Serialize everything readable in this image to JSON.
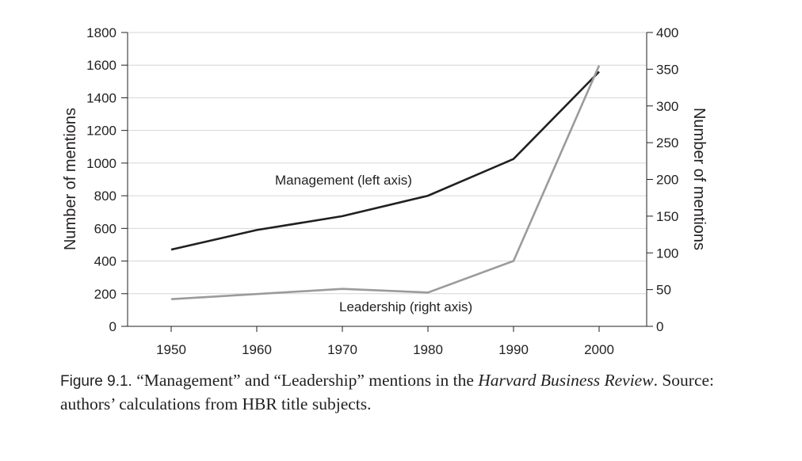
{
  "chart_data": {
    "type": "line",
    "x": [
      1950,
      1960,
      1970,
      1980,
      1990,
      2000
    ],
    "x_tick_labels": [
      "1950",
      "1960",
      "1970",
      "1980",
      "1990",
      "2000"
    ],
    "left_axis": {
      "label": "Number of mentions",
      "ylim": [
        0,
        1800
      ],
      "ticks": [
        0,
        200,
        400,
        600,
        800,
        1000,
        1200,
        1400,
        1600,
        1800
      ]
    },
    "right_axis": {
      "label": "Number of mentions",
      "ylim": [
        0,
        400
      ],
      "ticks": [
        0,
        50,
        100,
        150,
        200,
        250,
        300,
        350,
        400
      ]
    },
    "series": [
      {
        "name": "Management (left axis)",
        "axis": "left",
        "color": "#231f20",
        "values": [
          470,
          590,
          675,
          800,
          1025,
          1560
        ]
      },
      {
        "name": "Leadership (right axis)",
        "axis": "right",
        "color": "#9b9b9b",
        "values": [
          37,
          44,
          51,
          46,
          89,
          355
        ]
      }
    ],
    "grid": "horizontal"
  },
  "caption": {
    "figure_label": "Figure 9.1.",
    "text_part1": " “Management” and “Leadership” mentions in the ",
    "italic_part": "Harvard Business Review",
    "text_part2": ". Source: authors’ calculations from HBR title subjects."
  }
}
